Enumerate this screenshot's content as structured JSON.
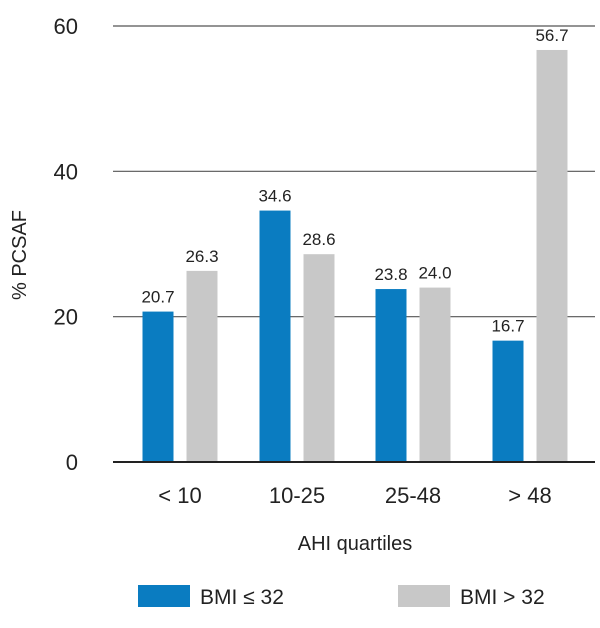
{
  "chart_data": {
    "type": "bar",
    "title": "",
    "xlabel": "AHI quartiles",
    "ylabel": "% PCSAF",
    "ylim": [
      0,
      60
    ],
    "yticks": [
      "0",
      "20",
      "40",
      "60"
    ],
    "grid": true,
    "legend_position": "bottom",
    "categories": [
      "< 10",
      "10-25",
      "25-48",
      "> 48"
    ],
    "series": [
      {
        "name": "BMI ≤ 32",
        "color": "#0a7cc1",
        "values": [
          20.7,
          34.6,
          23.8,
          16.7
        ],
        "labels": [
          "20.7",
          "34.6",
          "23.8",
          "16.7"
        ]
      },
      {
        "name": "BMI > 32",
        "color": "#c8c8c8",
        "values": [
          26.3,
          28.6,
          24.0,
          56.7
        ],
        "labels": [
          "26.3",
          "28.6",
          "24.0",
          "56.7"
        ]
      }
    ]
  }
}
